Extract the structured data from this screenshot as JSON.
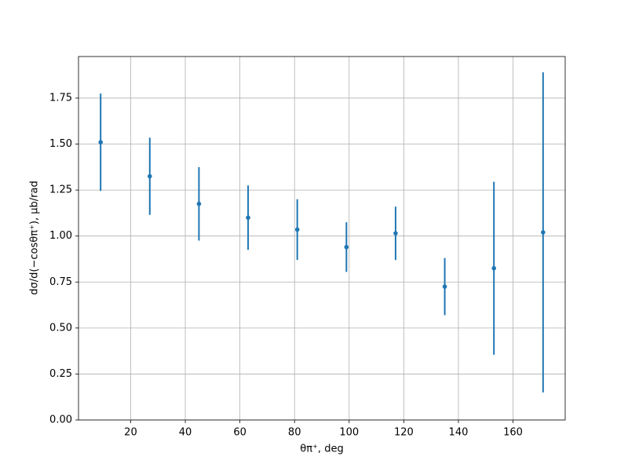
{
  "chart_data": {
    "type": "errorbar",
    "xlabel": "θπ⁺, deg",
    "ylabel": "dσ/d(−cosθπ⁺), μb/rad",
    "x": [
      9,
      27,
      45,
      63,
      81,
      99,
      117,
      135,
      153,
      171
    ],
    "series": [
      {
        "color": "#1f77b4",
        "values": [
          1.51,
          1.325,
          1.175,
          1.1,
          1.035,
          0.94,
          1.015,
          0.725,
          0.825,
          1.02
        ],
        "errors": [
          0.265,
          0.21,
          0.2,
          0.175,
          0.165,
          0.135,
          0.145,
          0.155,
          0.47,
          0.87
        ]
      }
    ],
    "xlim": [
      0.9,
      179.1
    ],
    "ylim": [
      0,
      1.976
    ],
    "xticks": [
      20,
      40,
      60,
      80,
      100,
      120,
      140,
      160
    ],
    "yticks": [
      {
        "value": 0,
        "label": "0.00"
      },
      {
        "value": 0.25,
        "label": "0.25"
      },
      {
        "value": 0.5,
        "label": "0.50"
      },
      {
        "value": 0.75,
        "label": "0.75"
      },
      {
        "value": 1,
        "label": "1.00"
      },
      {
        "value": 1.25,
        "label": "1.25"
      },
      {
        "value": 1.5,
        "label": "1.50"
      },
      {
        "value": 1.75,
        "label": "1.75"
      }
    ],
    "grid": true
  }
}
